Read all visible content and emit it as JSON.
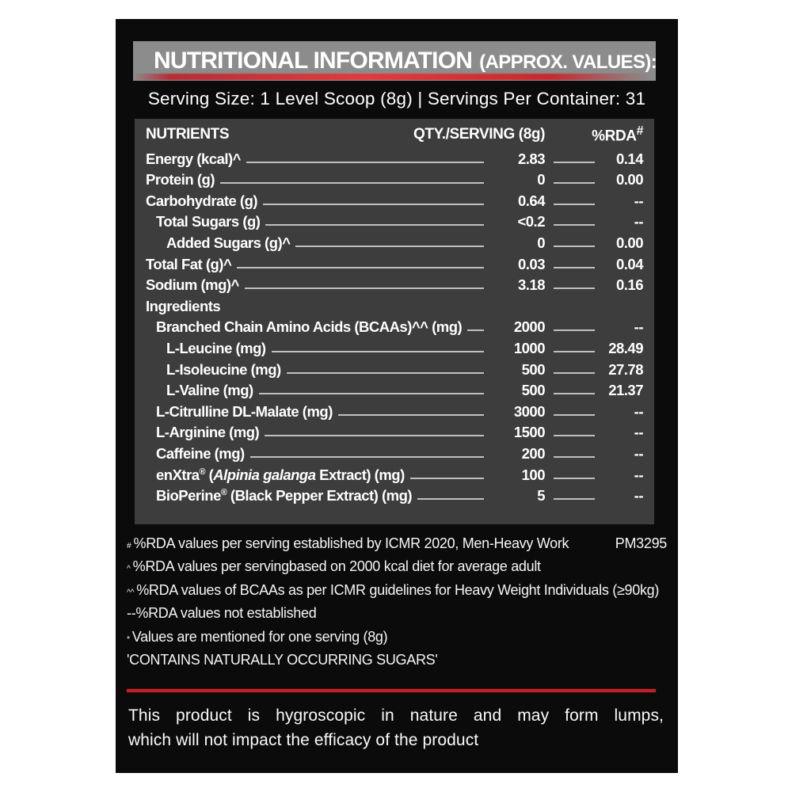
{
  "title": {
    "main": "NUTRITIONAL INFORMATION",
    "approx": "(APPROX. VALUES):"
  },
  "serving_line": "Serving Size: 1 Level Scoop (8g) | Servings Per Container: 31",
  "colors": {
    "accent_red": "#c1272d",
    "panel_black": "#0b0b0b",
    "table_gray": "#3d3d3d",
    "title_bar_gray": "#8c8c8c"
  },
  "table": {
    "header": {
      "nutrients": "NUTRIENTS",
      "qty": "QTY./SERVING (8g)",
      "rda": "%RDA",
      "rda_sup": "#"
    },
    "rows": [
      {
        "label": "Energy (kcal)^",
        "qty": "2.83",
        "rda": "0.14",
        "indent": 0
      },
      {
        "label": "Protein (g)",
        "qty": "0",
        "rda": "0.00",
        "indent": 0
      },
      {
        "label": "Carbohydrate (g)",
        "qty": "0.64",
        "rda": "--",
        "indent": 0
      },
      {
        "label": "Total Sugars (g)",
        "qty": "<0.2",
        "rda": "--",
        "indent": 1
      },
      {
        "label": "Added Sugars (g)^",
        "qty": "0",
        "rda": "0.00",
        "indent": 2
      },
      {
        "label": "Total Fat (g)^",
        "qty": "0.03",
        "rda": "0.04",
        "indent": 0
      },
      {
        "label": "Sodium (mg)^",
        "qty": "3.18",
        "rda": "0.16",
        "indent": 0
      },
      {
        "label": "Ingredients",
        "section": true,
        "indent": 0
      },
      {
        "label": "Branched Chain Amino Acids (BCAAs)^^ (mg)",
        "qty": "2000",
        "rda": "--",
        "indent": 1
      },
      {
        "label": "L-Leucine (mg)",
        "qty": "1000",
        "rda": "28.49",
        "indent": 2
      },
      {
        "label": "L-Isoleucine (mg)",
        "qty": "500",
        "rda": "27.78",
        "indent": 2
      },
      {
        "label": "L-Valine (mg)",
        "qty": "500",
        "rda": "21.37",
        "indent": 2
      },
      {
        "label": "L-Citrulline DL-Malate (mg)",
        "qty": "3000",
        "rda": "--",
        "indent": 1
      },
      {
        "label": "L-Arginine (mg)",
        "qty": "1500",
        "rda": "--",
        "indent": 1
      },
      {
        "label": "Caffeine (mg)",
        "qty": "200",
        "rda": "--",
        "indent": 1
      },
      {
        "label_parts": [
          {
            "t": "enXtra",
            "s": "b"
          },
          {
            "t": "®",
            "s": "sup"
          },
          {
            "t": " (",
            "s": "b"
          },
          {
            "t": "Alpinia galanga",
            "s": "i"
          },
          {
            "t": " Extract) (mg)",
            "s": "b"
          }
        ],
        "qty": "100",
        "rda": "--",
        "indent": 1
      },
      {
        "label_parts": [
          {
            "t": "BioPerine",
            "s": "b"
          },
          {
            "t": "®",
            "s": "sup"
          },
          {
            "t": " (Black Pepper Extract) (mg)",
            "s": "b"
          }
        ],
        "qty": "5",
        "rda": "--",
        "indent": 1
      }
    ]
  },
  "footnotes": [
    {
      "sup": "#",
      "text": "%RDA values per serving established by ICMR 2020, Men-Heavy Work",
      "right": "PM3295"
    },
    {
      "sup": "^",
      "text": "%RDA values per servingbased on 2000 kcal diet for average adult"
    },
    {
      "sup": "^^",
      "text": "%RDA values of BCAAs as per ICMR guidelines for Heavy Weight Individuals (≥90kg)"
    },
    {
      "sup": "",
      "text": "--%RDA values not established"
    },
    {
      "sup": "*",
      "text": "Values are mentioned for one serving (8g)"
    },
    {
      "sup": "",
      "text": "'CONTAINS NATURALLY OCCURRING SUGARS'"
    }
  ],
  "bottom_note": {
    "line1": "This product is hygroscopic in nature and may form lumps,",
    "line2": "which will not impact the efficacy of the product"
  }
}
